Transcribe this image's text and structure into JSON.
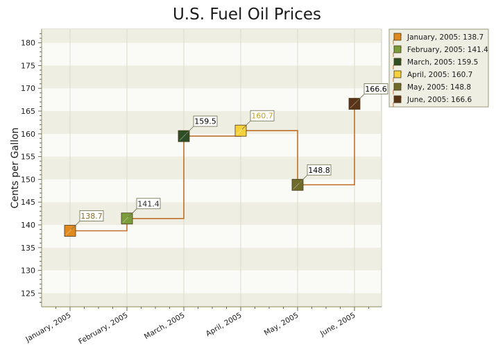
{
  "chart_data": {
    "type": "line",
    "title": "U.S. Fuel Oil Prices",
    "ylabel": "Cents per Gallon",
    "xlabel": "",
    "ylim": [
      122,
      183
    ],
    "yticks": [
      125,
      130,
      135,
      140,
      145,
      150,
      155,
      160,
      165,
      170,
      175,
      180
    ],
    "categories": [
      "January, 2005",
      "February, 2005",
      "March, 2005",
      "April, 2005",
      "May, 2005",
      "June, 2005"
    ],
    "values": [
      138.7,
      141.4,
      159.5,
      160.7,
      148.8,
      166.6
    ],
    "point_colors": [
      "#e08a1e",
      "#7a9c3a",
      "#2e4f26",
      "#f5d23c",
      "#6e6a2a",
      "#5a3418"
    ],
    "label_text_colors": [
      "#8a6a2a",
      "#2a2a2a",
      "#000000",
      "#c8a020",
      "#000000",
      "#000000"
    ],
    "line_color": "#c0702a",
    "line_style": "step",
    "grid": true,
    "legend_position": "right",
    "legend": [
      "January, 2005: 138.7",
      "February, 2005: 141.4",
      "March, 2005: 159.5",
      "April, 2005: 160.7",
      "May, 2005: 148.8",
      "June, 2005: 166.6"
    ]
  }
}
